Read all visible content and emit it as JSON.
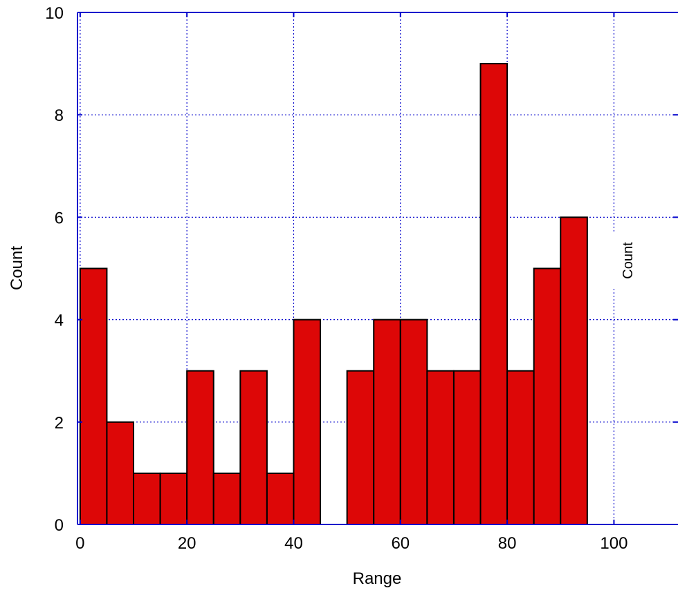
{
  "chart_data": {
    "type": "bar",
    "xlabel": "Range",
    "ylabel": "Count",
    "xlim": [
      -0.5,
      112
    ],
    "ylim": [
      0,
      10
    ],
    "x_ticks": [
      0,
      20,
      40,
      60,
      80,
      100
    ],
    "y_ticks": [
      0,
      2,
      4,
      6,
      8,
      10
    ],
    "grid": true,
    "bin_width": 5,
    "bins": [
      {
        "start": 0,
        "end": 5,
        "value": 5
      },
      {
        "start": 5,
        "end": 10,
        "value": 2
      },
      {
        "start": 10,
        "end": 15,
        "value": 1
      },
      {
        "start": 15,
        "end": 20,
        "value": 1
      },
      {
        "start": 20,
        "end": 25,
        "value": 3
      },
      {
        "start": 25,
        "end": 30,
        "value": 1
      },
      {
        "start": 30,
        "end": 35,
        "value": 3
      },
      {
        "start": 35,
        "end": 40,
        "value": 1
      },
      {
        "start": 40,
        "end": 45,
        "value": 4
      },
      {
        "start": 45,
        "end": 50,
        "value": 0
      },
      {
        "start": 50,
        "end": 55,
        "value": 3
      },
      {
        "start": 55,
        "end": 60,
        "value": 4
      },
      {
        "start": 60,
        "end": 65,
        "value": 4
      },
      {
        "start": 65,
        "end": 70,
        "value": 3
      },
      {
        "start": 70,
        "end": 75,
        "value": 3
      },
      {
        "start": 75,
        "end": 80,
        "value": 9
      },
      {
        "start": 80,
        "end": 85,
        "value": 3
      },
      {
        "start": 85,
        "end": 90,
        "value": 5
      },
      {
        "start": 90,
        "end": 95,
        "value": 6
      }
    ],
    "annotation": "Count",
    "colors": {
      "bar_fill": "#dd0707",
      "bar_stroke": "#000000",
      "frame": "#0000cc",
      "grid": "#0000cc"
    }
  }
}
